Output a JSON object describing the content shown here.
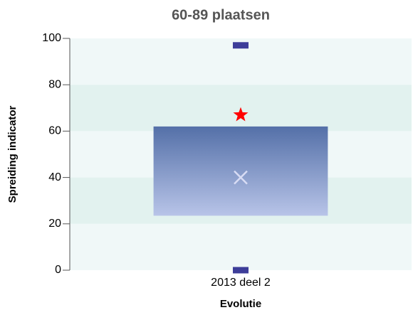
{
  "chart_data": {
    "type": "box",
    "title": "60-89 plaatsen",
    "y_label": "Spreiding indicator",
    "x_label": "Evolutie",
    "categories": [
      "2013 deel 2"
    ],
    "min": [
      0
    ],
    "q1": [
      23.5
    ],
    "q3": [
      62
    ],
    "max": [
      97
    ],
    "mean": [
      40
    ],
    "value": [
      67
    ],
    "box_color_top": "#5470a8",
    "box_color_bottom": "#b8c4e8",
    "minmax_color": "#3d3d99",
    "mean_color": "#d8dcf4",
    "value_color": "#ff0000",
    "ylim": [
      0,
      100
    ],
    "yticks": [
      0,
      20,
      40,
      60,
      80,
      100
    ],
    "grid": true
  }
}
